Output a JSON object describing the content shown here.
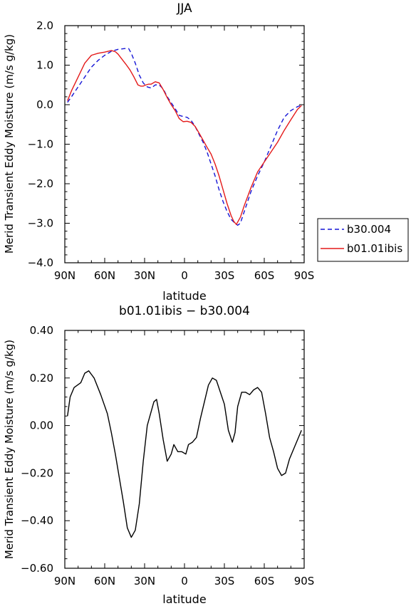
{
  "chart_data": [
    {
      "type": "line",
      "title": "JJA",
      "xlabel": "latitude",
      "ylabel": "Merid Transient Eddy Moisture (m/s g/kg)",
      "xlim": [
        90,
        -90
      ],
      "ylim": [
        -4.0,
        2.0
      ],
      "x_ticks": [
        90,
        60,
        30,
        0,
        -30,
        -60,
        -90
      ],
      "x_tick_labels": [
        "90N",
        "60N",
        "30N",
        "0",
        "30S",
        "60S",
        "90S"
      ],
      "y_ticks": [
        2.0,
        1.0,
        0.0,
        -1.0,
        -2.0,
        -3.0,
        -4.0
      ],
      "y_tick_labels": [
        "2.0",
        "1.0",
        "0.0",
        "−1.0",
        "−2.0",
        "−3.0",
        "−4.0"
      ],
      "legend": {
        "placement": "right",
        "entries": [
          {
            "label": "b30.004",
            "color": "#1515d6",
            "dash": "dashed"
          },
          {
            "label": "b01.01ibis",
            "color": "#e41a1a",
            "dash": "solid"
          }
        ]
      },
      "series": [
        {
          "name": "b30.004",
          "color": "#1515d6",
          "dash": "dashed",
          "x": [
            88,
            85,
            80,
            75,
            70,
            65,
            60,
            55,
            50,
            45,
            42,
            40,
            37,
            34,
            31,
            28,
            25,
            22,
            19,
            16,
            13,
            10,
            7,
            4,
            1,
            -2,
            -5,
            -8,
            -11,
            -14,
            -17,
            -20,
            -23,
            -26,
            -29,
            -32,
            -35,
            -38,
            -40,
            -42,
            -45,
            -50,
            -55,
            -60,
            -65,
            -70,
            -75,
            -80,
            -85,
            -88
          ],
          "y": [
            0.06,
            0.2,
            0.45,
            0.7,
            0.95,
            1.12,
            1.25,
            1.35,
            1.4,
            1.42,
            1.42,
            1.3,
            1.05,
            0.75,
            0.55,
            0.45,
            0.42,
            0.5,
            0.5,
            0.4,
            0.2,
            0.05,
            -0.1,
            -0.27,
            -0.3,
            -0.32,
            -0.4,
            -0.55,
            -0.75,
            -0.95,
            -1.2,
            -1.5,
            -1.8,
            -2.15,
            -2.45,
            -2.7,
            -2.9,
            -3.0,
            -3.05,
            -3.0,
            -2.7,
            -2.2,
            -1.8,
            -1.45,
            -1.05,
            -0.65,
            -0.32,
            -0.15,
            -0.05,
            -0.01
          ]
        },
        {
          "name": "b01.01ibis",
          "color": "#e41a1a",
          "dash": "solid",
          "x": [
            88,
            85,
            80,
            75,
            70,
            65,
            60,
            55,
            52,
            50,
            47,
            44,
            41,
            38,
            35,
            33,
            31,
            29,
            27,
            25,
            22,
            19,
            16,
            13,
            10,
            7,
            4,
            1,
            -2,
            -5,
            -8,
            -11,
            -14,
            -17,
            -20,
            -23,
            -26,
            -29,
            -32,
            -35,
            -37,
            -39,
            -42,
            -45,
            -50,
            -55,
            -60,
            -65,
            -70,
            -75,
            -80,
            -85,
            -88
          ],
          "y": [
            0.1,
            0.35,
            0.7,
            1.05,
            1.25,
            1.3,
            1.33,
            1.37,
            1.34,
            1.28,
            1.15,
            1.02,
            0.88,
            0.7,
            0.5,
            0.47,
            0.47,
            0.5,
            0.52,
            0.52,
            0.58,
            0.55,
            0.38,
            0.18,
            0.0,
            -0.15,
            -0.35,
            -0.43,
            -0.42,
            -0.45,
            -0.55,
            -0.72,
            -0.9,
            -1.08,
            -1.25,
            -1.5,
            -1.8,
            -2.15,
            -2.5,
            -2.8,
            -2.95,
            -3.03,
            -2.85,
            -2.55,
            -2.1,
            -1.7,
            -1.45,
            -1.2,
            -0.95,
            -0.65,
            -0.38,
            -0.12,
            -0.02
          ]
        }
      ]
    },
    {
      "type": "line",
      "title": "b01.01ibis − b30.004",
      "xlabel": "latitude",
      "ylabel": "Merid Transient Eddy Moisture (m/s g/kg)",
      "xlim": [
        90,
        -90
      ],
      "ylim": [
        -0.6,
        0.4
      ],
      "x_ticks": [
        90,
        60,
        30,
        0,
        -30,
        -60,
        -90
      ],
      "x_tick_labels": [
        "90N",
        "60N",
        "30N",
        "0",
        "30S",
        "60S",
        "90S"
      ],
      "y_ticks": [
        0.4,
        0.2,
        0.0,
        -0.2,
        -0.4,
        -0.6
      ],
      "y_tick_labels": [
        "0.40",
        "0.20",
        "0.00",
        "−0.20",
        "−0.40",
        "−0.60"
      ],
      "series": [
        {
          "color": "#000000",
          "dash": "solid",
          "x": [
            88,
            86,
            83,
            78,
            75,
            72,
            68,
            63,
            58,
            55,
            52,
            49,
            46,
            43,
            40,
            37,
            34,
            31,
            28,
            25,
            23,
            21,
            19,
            16,
            13,
            10,
            8,
            5,
            2,
            -1,
            -3,
            -6,
            -9,
            -12,
            -15,
            -18,
            -21,
            -24,
            -27,
            -30,
            -33,
            -36,
            -38,
            -40,
            -43,
            -46,
            -49,
            -52,
            -55,
            -58,
            -61,
            -64,
            -67,
            -70,
            -73,
            -76,
            -79,
            -82,
            -85,
            -88
          ],
          "y": [
            0.04,
            0.12,
            0.16,
            0.18,
            0.22,
            0.23,
            0.2,
            0.13,
            0.05,
            -0.03,
            -0.12,
            -0.22,
            -0.32,
            -0.43,
            -0.47,
            -0.44,
            -0.33,
            -0.15,
            0.0,
            0.06,
            0.1,
            0.11,
            0.05,
            -0.06,
            -0.15,
            -0.12,
            -0.08,
            -0.11,
            -0.11,
            -0.12,
            -0.08,
            -0.07,
            -0.05,
            0.03,
            0.1,
            0.17,
            0.2,
            0.19,
            0.14,
            0.09,
            -0.02,
            -0.07,
            -0.03,
            0.08,
            0.14,
            0.14,
            0.13,
            0.15,
            0.16,
            0.14,
            0.05,
            -0.05,
            -0.11,
            -0.18,
            -0.21,
            -0.2,
            -0.14,
            -0.1,
            -0.06,
            -0.02
          ]
        }
      ]
    }
  ]
}
